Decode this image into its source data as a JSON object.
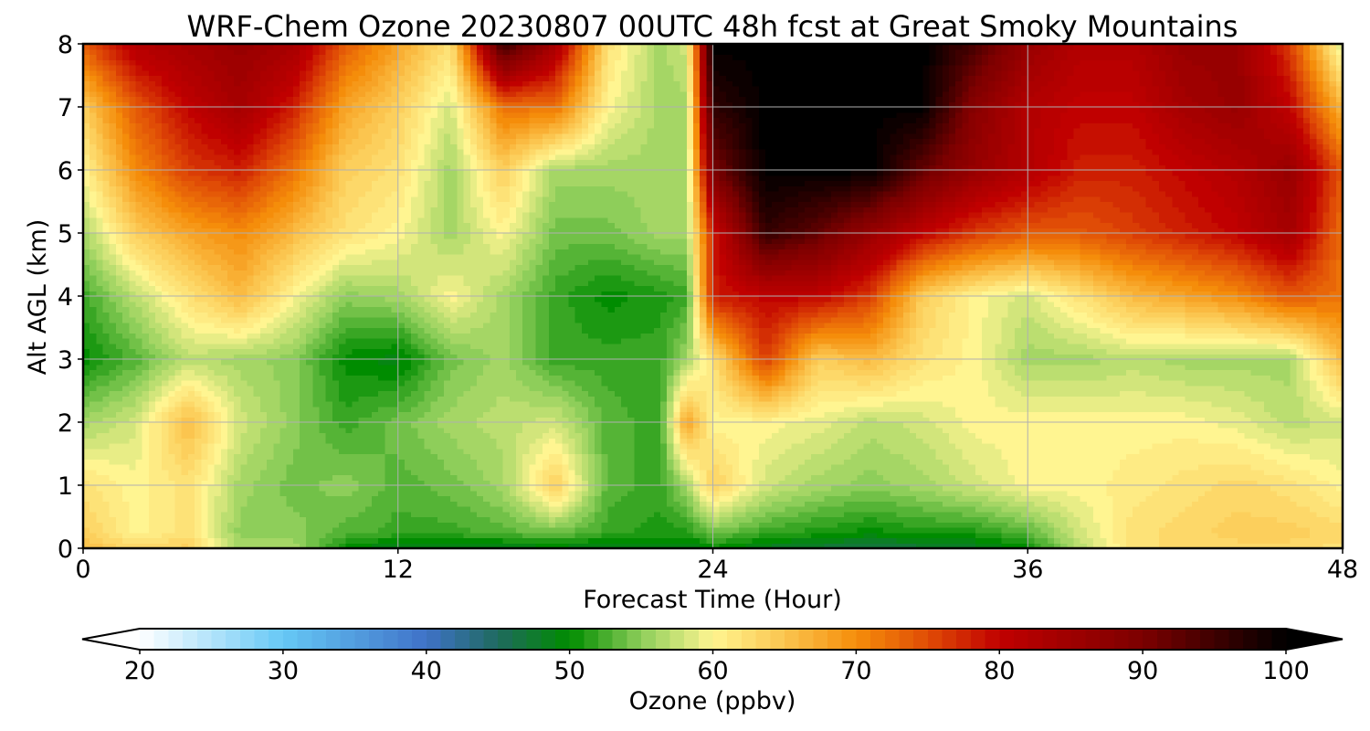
{
  "chart_data": {
    "type": "heatmap",
    "title": "WRF-Chem Ozone  20230807 00UTC 48h fcst at Great Smoky Mountains",
    "xlabel": "Forecast Time (Hour)",
    "ylabel": "Alt AGL (km)",
    "xlim": [
      0,
      48
    ],
    "ylim": [
      0,
      8
    ],
    "xticks": [
      0,
      12,
      24,
      36,
      48
    ],
    "yticks": [
      0,
      1,
      2,
      3,
      4,
      5,
      6,
      7,
      8
    ],
    "grid": true,
    "x": [
      0,
      2,
      4,
      6,
      8,
      10,
      12,
      14,
      16,
      18,
      20,
      22,
      23,
      24,
      26,
      28,
      30,
      32,
      34,
      36,
      38,
      40,
      42,
      44,
      46,
      48
    ],
    "y": [
      0,
      0.25,
      1,
      2,
      3,
      4,
      5,
      6,
      7,
      8
    ],
    "z": [
      [
        66,
        63,
        64,
        56,
        56,
        50,
        48,
        48,
        48,
        49,
        48,
        48,
        48,
        50,
        48,
        47,
        46,
        47,
        48,
        50,
        57,
        62,
        63,
        63,
        63,
        62
      ],
      [
        64,
        60,
        62,
        55,
        55,
        53,
        52,
        52,
        53,
        54,
        52,
        51,
        51,
        54,
        52,
        51,
        50,
        51,
        51,
        53,
        58,
        62,
        63,
        64,
        64,
        63
      ],
      [
        62,
        60,
        62,
        56,
        54,
        55,
        53,
        54,
        56,
        64,
        53,
        52,
        56,
        64,
        58,
        56,
        55,
        56,
        58,
        60,
        60,
        61,
        62,
        63,
        62,
        60
      ],
      [
        56,
        58,
        66,
        58,
        55,
        52,
        54,
        56,
        57,
        58,
        53,
        52,
        68,
        60,
        60,
        59,
        57,
        58,
        60,
        60,
        60,
        60,
        60,
        59,
        57,
        58
      ],
      [
        50,
        53,
        57,
        56,
        55,
        50,
        49,
        54,
        56,
        52,
        52,
        52,
        56,
        62,
        76,
        64,
        66,
        62,
        60,
        56,
        56,
        57,
        56,
        56,
        56,
        66
      ],
      [
        52,
        57,
        62,
        66,
        60,
        55,
        56,
        60,
        56,
        52,
        50,
        51,
        52,
        78,
        80,
        80,
        76,
        64,
        60,
        58,
        62,
        66,
        68,
        70,
        74,
        72
      ],
      [
        56,
        64,
        68,
        70,
        66,
        62,
        60,
        56,
        60,
        54,
        54,
        56,
        56,
        78,
        96,
        92,
        86,
        80,
        76,
        74,
        74,
        76,
        78,
        80,
        84,
        72
      ],
      [
        60,
        70,
        76,
        78,
        72,
        64,
        62,
        56,
        64,
        56,
        56,
        56,
        56,
        90,
        100,
        100,
        100,
        92,
        86,
        82,
        78,
        78,
        80,
        82,
        86,
        74
      ],
      [
        64,
        74,
        80,
        84,
        78,
        68,
        64,
        58,
        72,
        72,
        60,
        56,
        56,
        96,
        100,
        100,
        100,
        100,
        88,
        82,
        80,
        80,
        84,
        86,
        80,
        66
      ],
      [
        74,
        82,
        84,
        86,
        84,
        74,
        68,
        62,
        96,
        84,
        62,
        56,
        58,
        100,
        100,
        100,
        100,
        100,
        94,
        86,
        82,
        82,
        86,
        86,
        76,
        58
      ]
    ],
    "colorbar": {
      "label": "Ozone  (ppbv)",
      "min": 20,
      "max": 100,
      "ticks": [
        20,
        30,
        40,
        50,
        60,
        70,
        80,
        90,
        100
      ],
      "extend": "both",
      "stops": [
        {
          "value": 20,
          "color": "#ffffff"
        },
        {
          "value": 30,
          "color": "#66c8f5"
        },
        {
          "value": 40,
          "color": "#3f72c8"
        },
        {
          "value": 45,
          "color": "#1f6a5e"
        },
        {
          "value": 50,
          "color": "#008c00"
        },
        {
          "value": 55,
          "color": "#8ece5a"
        },
        {
          "value": 60,
          "color": "#fff591"
        },
        {
          "value": 65,
          "color": "#fbc54f"
        },
        {
          "value": 70,
          "color": "#f58d0a"
        },
        {
          "value": 75,
          "color": "#e04c06"
        },
        {
          "value": 80,
          "color": "#c00000"
        },
        {
          "value": 90,
          "color": "#7c0000"
        },
        {
          "value": 100,
          "color": "#000000"
        }
      ]
    }
  }
}
